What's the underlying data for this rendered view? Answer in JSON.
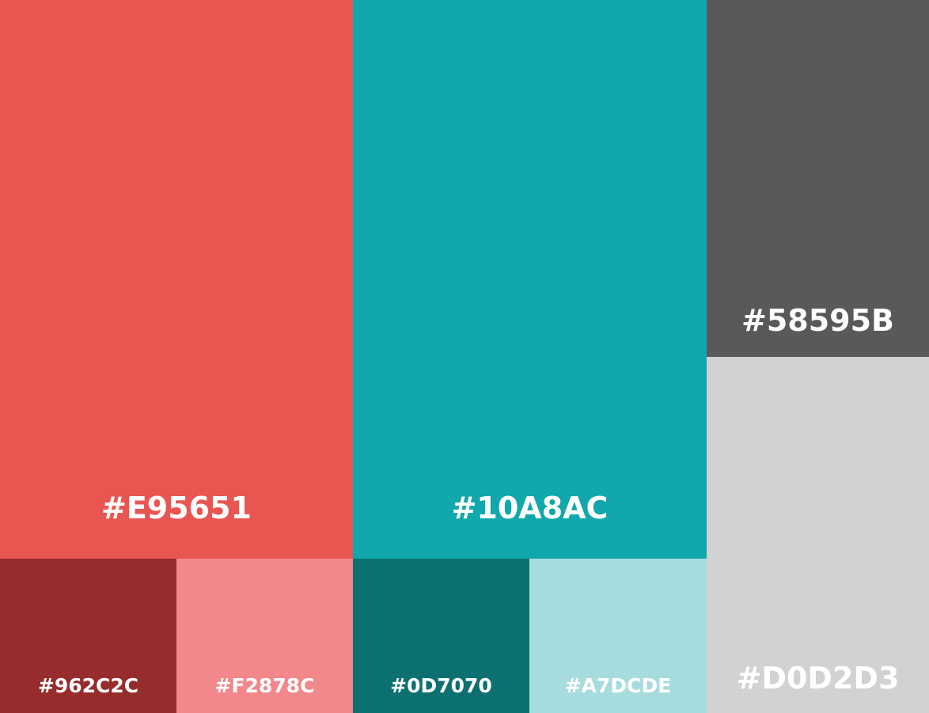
{
  "palette": {
    "swatches": [
      {
        "id": "sw-red",
        "label": "#E95651",
        "color": "#E95651"
      },
      {
        "id": "sw-teal",
        "label": "#10A8AC",
        "color": "#10A8AC"
      },
      {
        "id": "sw-gray",
        "label": "#58595B",
        "color": "#58595B"
      },
      {
        "id": "sw-light-gray",
        "label": "#D0D2D3",
        "color": "#D0D2D3"
      },
      {
        "id": "sw-dark-red",
        "label": "#962C2C",
        "color": "#962C2C"
      },
      {
        "id": "sw-pink",
        "label": "#F2878C",
        "color": "#F2878C"
      },
      {
        "id": "sw-dark-teal",
        "label": "#0D7070",
        "color": "#0D7070"
      },
      {
        "id": "sw-light-teal",
        "label": "#A7DCDE",
        "color": "#A7DCDE"
      }
    ]
  }
}
